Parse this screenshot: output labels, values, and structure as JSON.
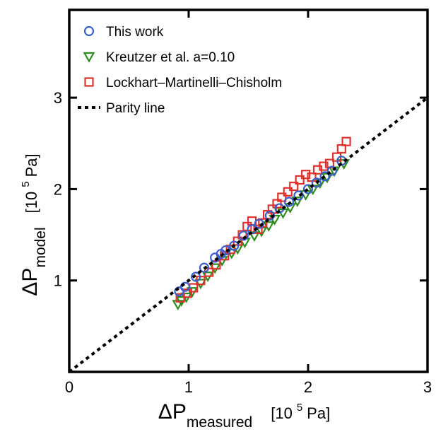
{
  "chart_data": {
    "type": "scatter",
    "title": "",
    "xlabel": {
      "symbol": "ΔP",
      "subscript": "measured",
      "unit_prefix": "[10",
      "exponent": "5",
      "unit_suffix": "Pa]"
    },
    "ylabel": {
      "symbol": "ΔP",
      "subscript": "model",
      "unit_prefix": "[10",
      "exponent": "5",
      "unit_suffix": "Pa]"
    },
    "xlim": [
      0,
      3
    ],
    "ylim": [
      0,
      3.96
    ],
    "x_ticks": [
      "0",
      "1",
      "2",
      "3"
    ],
    "y_ticks": [
      "1",
      "2",
      "3"
    ],
    "grid": false,
    "legend_position": "top-left",
    "series": [
      {
        "name": "This work",
        "marker": "circle",
        "color": "#3a5fcd",
        "x": [
          0.92,
          0.97,
          1.06,
          1.13,
          1.22,
          1.27,
          1.31,
          1.38,
          1.46,
          1.53,
          1.59,
          1.68,
          1.76,
          1.84,
          1.92,
          2.0,
          2.07,
          2.14,
          2.2,
          2.28
        ],
        "y": [
          0.88,
          0.93,
          1.04,
          1.14,
          1.25,
          1.29,
          1.33,
          1.38,
          1.49,
          1.56,
          1.62,
          1.71,
          1.79,
          1.86,
          1.93,
          2.0,
          2.07,
          2.14,
          2.2,
          2.31
        ]
      },
      {
        "name": "Kreutzer et al. a=0.10",
        "marker": "triangle-down",
        "color": "#2e8b1e",
        "x": [
          0.91,
          0.94,
          0.98,
          1.03,
          1.1,
          1.16,
          1.22,
          1.28,
          1.36,
          1.41,
          1.47,
          1.55,
          1.61,
          1.67,
          1.72,
          1.79,
          1.85,
          1.91,
          1.98,
          2.04,
          2.1,
          2.16,
          2.22,
          2.3
        ],
        "y": [
          0.74,
          0.78,
          0.82,
          0.88,
          0.97,
          1.05,
          1.14,
          1.22,
          1.3,
          1.35,
          1.42,
          1.49,
          1.54,
          1.6,
          1.67,
          1.74,
          1.8,
          1.87,
          1.94,
          2.0,
          2.07,
          2.13,
          2.2,
          2.28
        ]
      },
      {
        "name": "Lockhart–Martinelli–Chisholm",
        "marker": "square",
        "color": "#e0322c",
        "x": [
          0.93,
          0.99,
          1.04,
          1.1,
          1.17,
          1.23,
          1.3,
          1.35,
          1.41,
          1.45,
          1.49,
          1.53,
          1.58,
          1.62,
          1.66,
          1.7,
          1.74,
          1.78,
          1.83,
          1.88,
          1.93,
          1.98,
          2.03,
          2.08,
          2.13,
          2.18,
          2.24,
          2.28,
          2.32
        ],
        "y": [
          0.81,
          0.86,
          0.92,
          1.0,
          1.09,
          1.17,
          1.27,
          1.34,
          1.43,
          1.5,
          1.59,
          1.65,
          1.56,
          1.63,
          1.72,
          1.78,
          1.84,
          1.91,
          1.97,
          2.03,
          2.1,
          2.16,
          2.13,
          2.21,
          2.25,
          2.28,
          2.35,
          2.44,
          2.52
        ]
      },
      {
        "name": "Parity line",
        "marker": "none",
        "line": "dotted",
        "color": "#000000",
        "x": [
          0,
          3
        ],
        "y": [
          0,
          3
        ]
      }
    ]
  }
}
